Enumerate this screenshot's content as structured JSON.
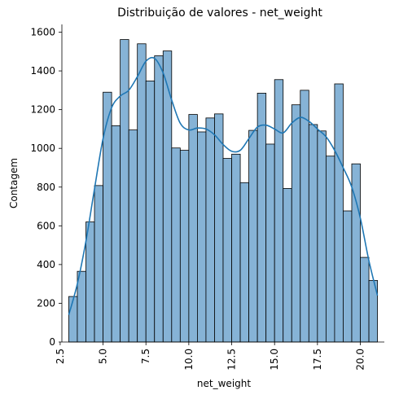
{
  "chart_data": {
    "type": "bar",
    "title": "Distribuição de valores - net_weight",
    "xlabel": "net_weight",
    "ylabel": "Contagem",
    "xlim": [
      2.6,
      21.4
    ],
    "ylim": [
      0,
      1640
    ],
    "x_ticks": [
      2.5,
      5.0,
      7.5,
      10.0,
      12.5,
      15.0,
      17.5,
      20.0
    ],
    "x_tick_labels": [
      "2.5",
      "5.0",
      "7.5",
      "10.0",
      "12.5",
      "15.0",
      "17.5",
      "20.0"
    ],
    "y_ticks": [
      0,
      200,
      400,
      600,
      800,
      1000,
      1200,
      1400,
      1600
    ],
    "y_tick_labels": [
      "0",
      "200",
      "400",
      "600",
      "800",
      "1000",
      "1200",
      "1400",
      "1600"
    ],
    "bin_start": 3.0,
    "bin_width": 0.5,
    "values": [
      235,
      365,
      620,
      808,
      1290,
      1117,
      1562,
      1095,
      1540,
      1348,
      1478,
      1503,
      1002,
      990,
      1175,
      1085,
      1157,
      1178,
      948,
      970,
      823,
      1093,
      1285,
      1022,
      1355,
      793,
      1225,
      1300,
      1123,
      1090,
      960,
      1333,
      677,
      920,
      437,
      318
    ],
    "kde": {
      "x": [
        3.0,
        3.5,
        4.0,
        4.5,
        5.0,
        5.5,
        6.0,
        6.5,
        7.0,
        7.5,
        8.0,
        8.5,
        9.0,
        9.5,
        10.0,
        10.5,
        11.0,
        11.5,
        12.0,
        12.5,
        13.0,
        13.5,
        14.0,
        14.5,
        15.0,
        15.5,
        16.0,
        16.5,
        17.0,
        17.5,
        18.0,
        18.5,
        19.0,
        19.5,
        20.0,
        20.5,
        21.0
      ],
      "y": [
        140,
        300,
        520,
        790,
        1050,
        1210,
        1270,
        1300,
        1370,
        1450,
        1465,
        1390,
        1250,
        1130,
        1095,
        1105,
        1100,
        1070,
        1020,
        985,
        990,
        1050,
        1110,
        1120,
        1100,
        1080,
        1130,
        1160,
        1140,
        1100,
        1060,
        990,
        900,
        800,
        640,
        420,
        240
      ]
    },
    "bar_fill": "#86b3d6",
    "bar_edge": "#000000",
    "line_color": "#1f77b4",
    "grid": false,
    "legend": "none"
  }
}
